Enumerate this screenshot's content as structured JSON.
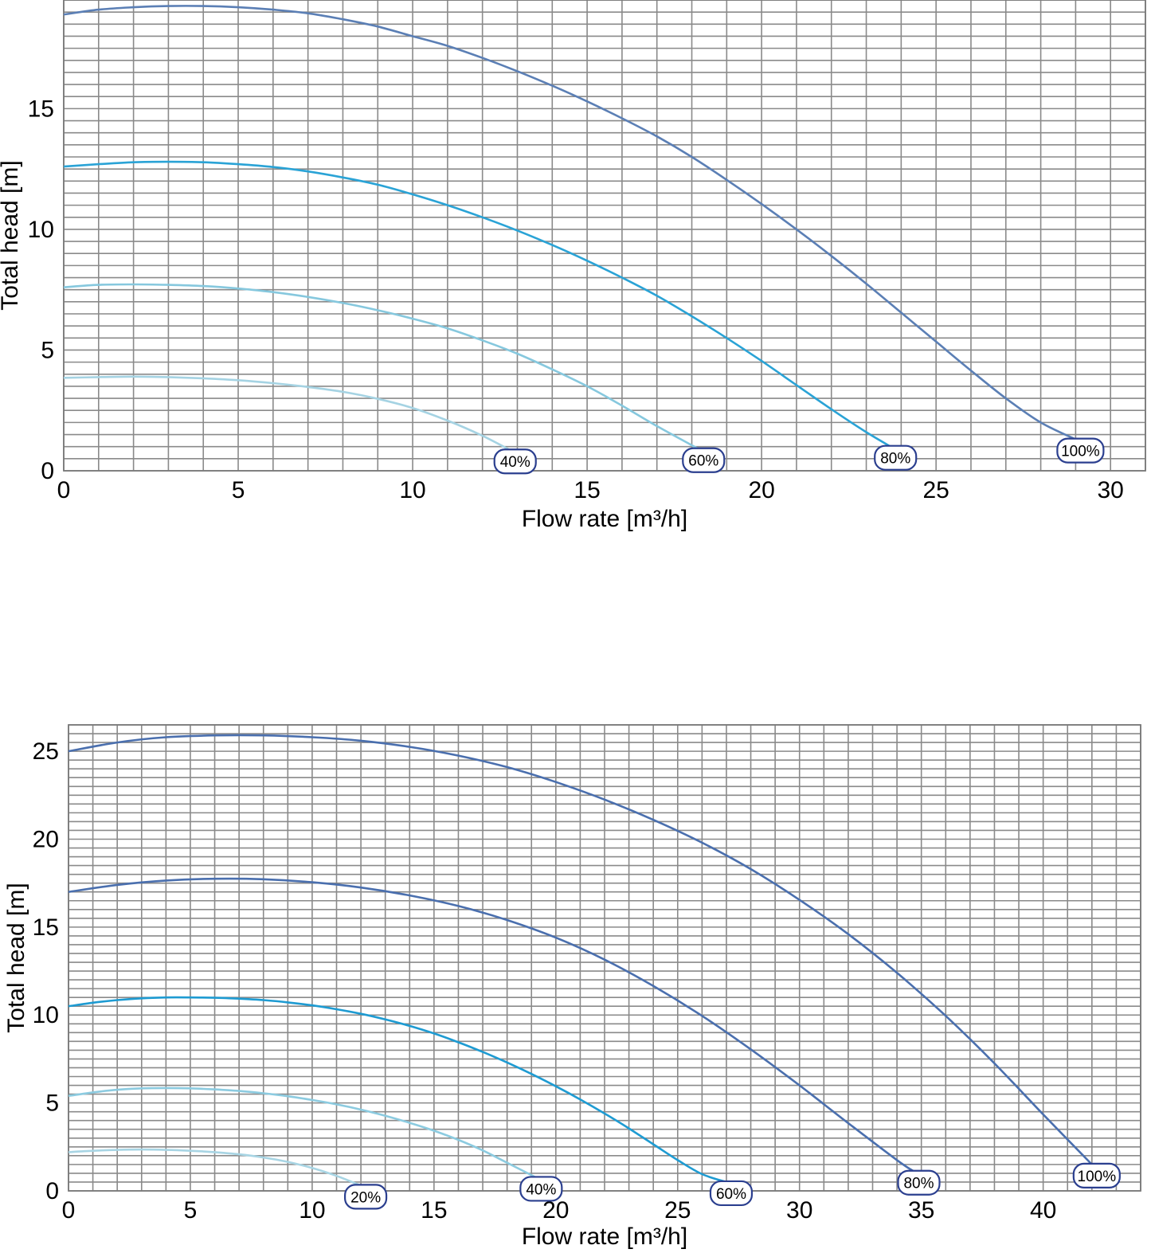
{
  "chart_data": [
    {
      "type": "line",
      "xlabel": "Flow rate [m³/h]",
      "ylabel": "Total head [m]",
      "xlim": [
        0,
        31
      ],
      "ylim": [
        0,
        19.5
      ],
      "x_ticks": [
        "0",
        "5",
        "10",
        "15",
        "20",
        "25",
        "30"
      ],
      "y_ticks": [
        "0",
        "5",
        "10",
        "15"
      ],
      "grid": true,
      "series": [
        {
          "name": "100%",
          "color": "#5b7fb5",
          "x": [
            0,
            1,
            2,
            3,
            4,
            5,
            6,
            7,
            8,
            9,
            10,
            11,
            12,
            13,
            14,
            15,
            16,
            17,
            18,
            19,
            20,
            21,
            22,
            23,
            24,
            25,
            26,
            27,
            28,
            29
          ],
          "y": [
            18.9,
            19.1,
            19.2,
            19.25,
            19.25,
            19.2,
            19.1,
            18.95,
            18.7,
            18.4,
            18.0,
            17.6,
            17.1,
            16.55,
            15.95,
            15.3,
            14.6,
            13.85,
            13.0,
            12.05,
            11.05,
            10.0,
            8.9,
            7.75,
            6.55,
            5.35,
            4.15,
            3.0,
            2.0,
            1.3
          ]
        },
        {
          "name": "80%",
          "color": "#2aa3d6",
          "x": [
            0,
            1,
            2,
            3,
            4,
            5,
            6,
            7,
            8,
            9,
            10,
            11,
            12,
            13,
            14,
            15,
            16,
            17,
            18,
            19,
            20,
            21,
            22,
            23,
            23.7
          ],
          "y": [
            12.6,
            12.7,
            12.78,
            12.8,
            12.78,
            12.7,
            12.58,
            12.4,
            12.15,
            11.85,
            11.45,
            11.0,
            10.5,
            9.95,
            9.35,
            8.7,
            8.0,
            7.25,
            6.4,
            5.5,
            4.55,
            3.55,
            2.55,
            1.6,
            1.0
          ]
        },
        {
          "name": "60%",
          "color": "#86c8de",
          "x": [
            0,
            1,
            2,
            3,
            4,
            5,
            6,
            7,
            8,
            9,
            10,
            11,
            12,
            13,
            14,
            15,
            16,
            17,
            18.2
          ],
          "y": [
            7.6,
            7.7,
            7.72,
            7.7,
            7.65,
            7.55,
            7.4,
            7.2,
            6.95,
            6.65,
            6.3,
            5.9,
            5.4,
            4.85,
            4.2,
            3.5,
            2.7,
            1.85,
            0.9
          ]
        },
        {
          "name": "40%",
          "color": "#a5d3e3",
          "x": [
            0,
            1,
            2,
            3,
            4,
            5,
            6,
            7,
            8,
            9,
            10,
            11,
            12,
            12.8
          ],
          "y": [
            3.85,
            3.88,
            3.9,
            3.88,
            3.83,
            3.75,
            3.63,
            3.47,
            3.27,
            2.98,
            2.6,
            2.08,
            1.45,
            0.85
          ]
        }
      ]
    },
    {
      "type": "line",
      "xlabel": "Flow rate [m³/h]",
      "ylabel": "Total head [m]",
      "xlim": [
        0,
        44
      ],
      "ylim": [
        0,
        26.5
      ],
      "x_ticks": [
        "0",
        "5",
        "10",
        "15",
        "20",
        "25",
        "30",
        "35",
        "40"
      ],
      "y_ticks": [
        "0",
        "5",
        "10",
        "15",
        "20",
        "25"
      ],
      "grid": true,
      "series": [
        {
          "name": "100%",
          "color": "#4a6fae",
          "x": [
            0,
            2,
            4,
            6,
            8,
            10,
            12,
            14,
            16,
            18,
            20,
            22,
            24,
            26,
            28,
            30,
            32,
            34,
            36,
            38,
            40,
            42
          ],
          "y": [
            25.0,
            25.5,
            25.8,
            25.9,
            25.9,
            25.8,
            25.6,
            25.25,
            24.75,
            24.1,
            23.25,
            22.25,
            21.1,
            19.8,
            18.3,
            16.55,
            14.6,
            12.4,
            9.95,
            7.25,
            4.35,
            1.5
          ]
        },
        {
          "name": "80%",
          "color": "#4a6fae",
          "x": [
            0,
            2,
            4,
            6,
            8,
            10,
            12,
            14,
            16,
            18,
            20,
            22,
            24,
            26,
            28,
            30,
            32,
            34,
            34.7
          ],
          "y": [
            17.0,
            17.4,
            17.65,
            17.75,
            17.72,
            17.55,
            17.25,
            16.8,
            16.2,
            15.4,
            14.4,
            13.15,
            11.65,
            9.95,
            8.05,
            6.0,
            3.85,
            1.75,
            1.1
          ]
        },
        {
          "name": "60%",
          "color": "#1e9bd2",
          "x": [
            0,
            1,
            2,
            3,
            4,
            5,
            6,
            7,
            8,
            9,
            10,
            11,
            12,
            13,
            14,
            15,
            16,
            17,
            18,
            19,
            20,
            21,
            22,
            23,
            24,
            25,
            26,
            27
          ],
          "y": [
            10.5,
            10.7,
            10.85,
            10.95,
            11.0,
            11.0,
            10.98,
            10.93,
            10.85,
            10.72,
            10.55,
            10.33,
            10.07,
            9.75,
            9.38,
            8.95,
            8.45,
            7.9,
            7.3,
            6.65,
            5.95,
            5.2,
            4.4,
            3.55,
            2.65,
            1.75,
            0.95,
            0.5
          ]
        },
        {
          "name": "40%",
          "color": "#8ccbe0",
          "x": [
            0,
            1,
            2,
            3,
            4,
            5,
            6,
            7,
            8,
            9,
            10,
            11,
            12,
            13,
            14,
            15,
            16,
            17,
            18,
            19.2
          ],
          "y": [
            5.4,
            5.6,
            5.75,
            5.83,
            5.85,
            5.83,
            5.77,
            5.68,
            5.55,
            5.38,
            5.17,
            4.92,
            4.62,
            4.27,
            3.87,
            3.42,
            2.9,
            2.3,
            1.6,
            0.75
          ]
        },
        {
          "name": "20%",
          "color": "#a8d5e4",
          "x": [
            0,
            1,
            2,
            3,
            4,
            5,
            6,
            7,
            8,
            9,
            10,
            11,
            12
          ],
          "y": [
            2.2,
            2.28,
            2.33,
            2.35,
            2.33,
            2.28,
            2.2,
            2.08,
            1.9,
            1.65,
            1.3,
            0.85,
            0.3
          ]
        }
      ]
    }
  ]
}
